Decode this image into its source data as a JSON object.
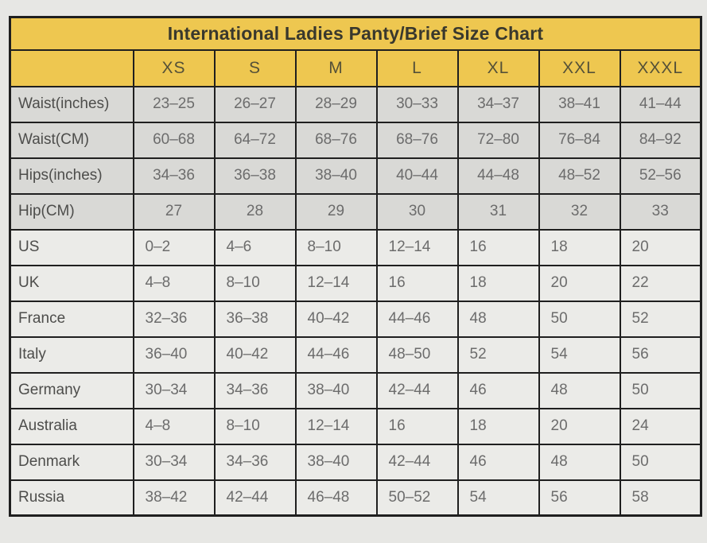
{
  "title": "International Ladies Panty/Brief Size Chart",
  "chart_data": {
    "type": "table",
    "title": "International Ladies Panty/Brief Size Chart",
    "corner_cell": "",
    "size_columns": [
      "XS",
      "S",
      "M",
      "L",
      "XL",
      "XXL",
      "XXXL"
    ],
    "rows": [
      {
        "label": "Waist(inches)",
        "group": "measurement",
        "values": [
          "23–25",
          "26–27",
          "28–29",
          "30–33",
          "34–37",
          "38–41",
          "41–44"
        ]
      },
      {
        "label": "Waist(CM)",
        "group": "measurement",
        "values": [
          "60–68",
          "64–72",
          "68–76",
          "68–76",
          "72–80",
          "76–84",
          "84–92"
        ]
      },
      {
        "label": "Hips(inches)",
        "group": "measurement",
        "values": [
          "34–36",
          "36–38",
          "38–40",
          "40–44",
          "44–48",
          "48–52",
          "52–56"
        ]
      },
      {
        "label": "Hip(CM)",
        "group": "measurement",
        "values": [
          "27",
          "28",
          "29",
          "30",
          "31",
          "32",
          "33"
        ]
      },
      {
        "label": "US",
        "group": "country",
        "values": [
          "0–2",
          "4–6",
          "8–10",
          "12–14",
          "16",
          "18",
          "20"
        ]
      },
      {
        "label": "UK",
        "group": "country",
        "values": [
          "4–8",
          "8–10",
          "12–14",
          "16",
          "18",
          "20",
          "22"
        ]
      },
      {
        "label": "France",
        "group": "country",
        "values": [
          "32–36",
          "36–38",
          "40–42",
          "44–46",
          "48",
          "50",
          "52"
        ]
      },
      {
        "label": "Italy",
        "group": "country",
        "values": [
          "36–40",
          "40–42",
          "44–46",
          "48–50",
          "52",
          "54",
          "56"
        ]
      },
      {
        "label": "Germany",
        "group": "country",
        "values": [
          "30–34",
          "34–36",
          "38–40",
          "42–44",
          "46",
          "48",
          "50"
        ]
      },
      {
        "label": "Australia",
        "group": "country",
        "values": [
          "4–8",
          "8–10",
          "12–14",
          "16",
          "18",
          "20",
          "24"
        ]
      },
      {
        "label": "Denmark",
        "group": "country",
        "values": [
          "30–34",
          "34–36",
          "38–40",
          "42–44",
          "46",
          "48",
          "50"
        ]
      },
      {
        "label": "Russia",
        "group": "country",
        "values": [
          "38–42",
          "42–44",
          "46–48",
          "50–52",
          "54",
          "56",
          "58"
        ]
      }
    ]
  },
  "colors": {
    "page_bg": "#e7e7e4",
    "header_bg": "#eec750",
    "measurement_row_bg": "#d9d9d6",
    "country_row_bg": "#ebebe8",
    "border": "#1f1f1f",
    "title_text": "#39382d",
    "header_text": "#555138",
    "label_text": "#4d4d4b",
    "value_text": "#6c6c6c"
  }
}
